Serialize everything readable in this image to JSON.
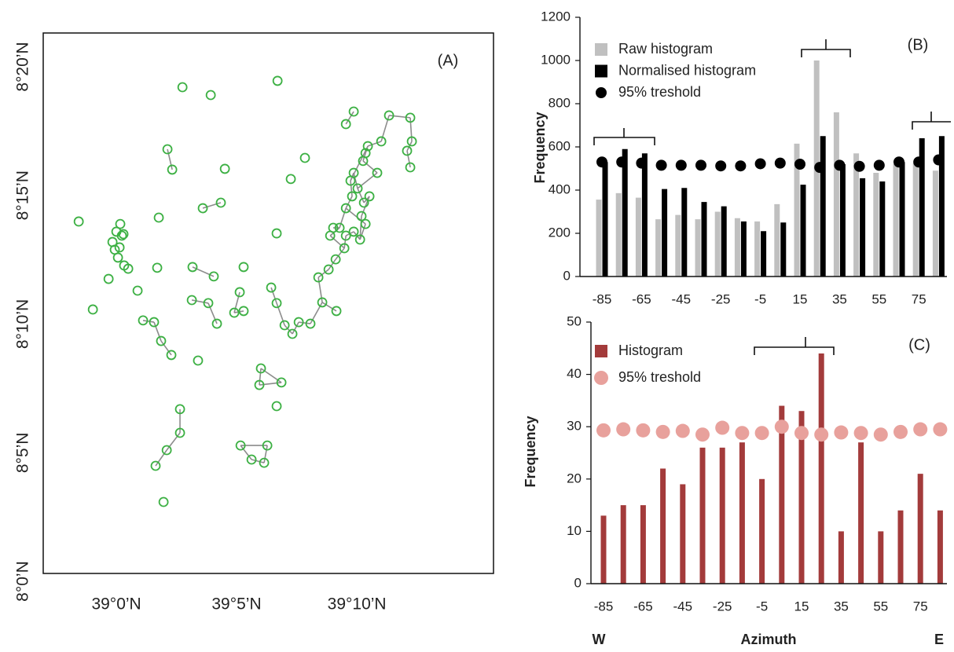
{
  "chart_data": [
    {
      "type": "scatter",
      "annotation": "(A)",
      "color": "#3cb043",
      "link_color": "#8c8c8c",
      "xlim": [
        38.9493,
        39.2614
      ],
      "ylim": [
        8.0051,
        8.3552
      ],
      "xticks": [
        {
          "value": 39.0,
          "label": "39°0’N"
        },
        {
          "value": 39.0833,
          "label": "39°5’N"
        },
        {
          "value": 39.1667,
          "label": "39°10’N"
        }
      ],
      "yticks": [
        {
          "value": 8.0,
          "label": "8°0’N"
        },
        {
          "value": 8.0833,
          "label": "8°5’N"
        },
        {
          "value": 8.1667,
          "label": "8°10’N"
        },
        {
          "value": 8.25,
          "label": "8°15’N"
        },
        {
          "value": 8.3333,
          "label": "8°20’N"
        }
      ],
      "x": [
        38.9739,
        38.9837,
        38.9946,
        38.9973,
        38.9989,
        39.0011,
        39.0,
        39.0027,
        39.0038,
        39.0049,
        39.0022,
        39.0054,
        39.0082,
        39.0147,
        39.0185,
        39.0261,
        39.031,
        39.0381,
        39.0283,
        39.0294,
        39.0354,
        39.0387,
        39.0458,
        39.0654,
        39.0752,
        39.0599,
        39.0724,
        39.0528,
        39.0675,
        39.0523,
        39.0637,
        39.0697,
        39.0817,
        39.0855,
        39.0882,
        39.0882,
        39.0566,
        39.1117,
        39.1307,
        39.1209,
        39.1111,
        39.0441,
        39.0441,
        39.0349,
        39.0272,
        39.0327,
        39.0861,
        39.0937,
        39.1024,
        39.1046,
        39.1002,
        39.0991,
        39.1144,
        39.1111,
        39.1073,
        39.1111,
        39.1166,
        39.122,
        39.1264,
        39.1345,
        39.1427,
        39.1525,
        39.14,
        39.1471,
        39.152,
        39.158,
        39.1482,
        39.1547,
        39.1591,
        39.1634,
        39.1623,
        39.1645,
        39.1672,
        39.1716,
        39.1754,
        39.1699,
        39.1689,
        39.1727,
        39.1591,
        39.1645,
        39.1727,
        39.171,
        39.1808,
        39.1743,
        39.1836,
        39.189,
        39.2037,
        39.2015,
        39.2037,
        39.2048,
        39.1591,
        39.1645,
        39.1503
      ],
      "y": [
        8.2331,
        8.1761,
        8.1959,
        8.2198,
        8.2148,
        8.2097,
        8.2265,
        8.2315,
        8.2239,
        8.2249,
        8.2163,
        8.2046,
        8.2025,
        8.1883,
        8.169,
        8.1679,
        8.1557,
        8.1466,
        8.2031,
        8.2356,
        8.2799,
        8.2667,
        8.3201,
        8.315,
        8.2672,
        8.2417,
        8.2453,
        8.2036,
        8.1975,
        8.1822,
        8.1802,
        8.1669,
        8.174,
        8.1873,
        8.1751,
        8.2036,
        8.143,
        8.3242,
        8.2743,
        8.2606,
        8.2254,
        8.1115,
        8.0962,
        8.085,
        8.0748,
        8.0514,
        8.088,
        8.0789,
        8.0768,
        8.088,
        8.1379,
        8.1272,
        8.1288,
        8.1135,
        8.1903,
        8.1802,
        8.1659,
        8.1603,
        8.1679,
        8.1669,
        8.1807,
        8.1751,
        8.1969,
        8.202,
        8.2086,
        8.2158,
        8.2239,
        8.229,
        8.2417,
        8.2494,
        8.2595,
        8.2646,
        8.2545,
        8.2453,
        8.2494,
        8.2366,
        8.2214,
        8.2315,
        8.2962,
        8.3043,
        8.2774,
        8.2723,
        8.2646,
        8.2819,
        8.285,
        8.3018,
        8.3003,
        8.2789,
        8.2682,
        8.285,
        8.2239,
        8.2265,
        8.229
      ],
      "links": [
        [
          20,
          21
        ],
        [
          25,
          26
        ],
        [
          27,
          28
        ],
        [
          29,
          30
        ],
        [
          30,
          31
        ],
        [
          32,
          33
        ],
        [
          32,
          34
        ],
        [
          41,
          42
        ],
        [
          42,
          43
        ],
        [
          43,
          44
        ],
        [
          14,
          15
        ],
        [
          15,
          16
        ],
        [
          16,
          17
        ],
        [
          50,
          51
        ],
        [
          51,
          52
        ],
        [
          50,
          52
        ],
        [
          46,
          47
        ],
        [
          47,
          48
        ],
        [
          48,
          49
        ],
        [
          46,
          49
        ],
        [
          54,
          55
        ],
        [
          55,
          56
        ],
        [
          56,
          57
        ],
        [
          57,
          58
        ],
        [
          58,
          59
        ],
        [
          59,
          60
        ],
        [
          60,
          61
        ],
        [
          60,
          62
        ],
        [
          62,
          63
        ],
        [
          63,
          64
        ],
        [
          64,
          65
        ],
        [
          65,
          66
        ],
        [
          66,
          67
        ],
        [
          67,
          68
        ],
        [
          68,
          69
        ],
        [
          69,
          70
        ],
        [
          70,
          71
        ],
        [
          71,
          72
        ],
        [
          72,
          73
        ],
        [
          73,
          74
        ],
        [
          74,
          75
        ],
        [
          75,
          76
        ],
        [
          76,
          77
        ],
        [
          77,
          68
        ],
        [
          78,
          79
        ],
        [
          80,
          81
        ],
        [
          81,
          82
        ],
        [
          80,
          83
        ],
        [
          83,
          84
        ],
        [
          84,
          85
        ],
        [
          85,
          86
        ],
        [
          86,
          89
        ],
        [
          89,
          87
        ],
        [
          87,
          88
        ],
        [
          90,
          91
        ],
        [
          91,
          76
        ],
        [
          92,
          67
        ],
        [
          90,
          65
        ],
        [
          83,
          70
        ],
        [
          82,
          72
        ]
      ]
    },
    {
      "type": "bar",
      "annotation": "(B)",
      "ylabel": "Frequency",
      "categories": [
        -85,
        null,
        -65,
        null,
        -45,
        null,
        -25,
        null,
        -5,
        null,
        15,
        null,
        35,
        null,
        55,
        null,
        75,
        null
      ],
      "ylim": [
        0,
        1200
      ],
      "yticks": [
        0,
        200,
        400,
        600,
        800,
        1000,
        1200
      ],
      "series": [
        {
          "name": "Raw histogram",
          "color": "#c0c0c0",
          "marker": "bar",
          "values": [
            356,
            386,
            365,
            265,
            285,
            265,
            300,
            270,
            255,
            335,
            615,
            1000,
            760,
            570,
            480,
            520,
            525,
            490
          ]
        },
        {
          "name": "Normalised histogram",
          "color": "#000000",
          "marker": "bar",
          "values": [
            530,
            590,
            570,
            405,
            410,
            345,
            325,
            255,
            210,
            250,
            425,
            650,
            520,
            455,
            440,
            530,
            640,
            650
          ]
        },
        {
          "name": "95% treshold",
          "color": "#000000",
          "marker": "circle",
          "values": [
            530,
            530,
            525,
            515,
            515,
            515,
            512,
            512,
            522,
            525,
            520,
            505,
            515,
            510,
            515,
            530,
            530,
            540
          ]
        }
      ]
    },
    {
      "type": "bar",
      "annotation": "(C)",
      "ylabel": "Frequency",
      "xlabel": "Azimuth",
      "x_end_labels": [
        "W",
        "E"
      ],
      "categories": [
        -85,
        null,
        -65,
        null,
        -45,
        null,
        -25,
        null,
        -5,
        null,
        15,
        null,
        35,
        null,
        55,
        null,
        75,
        null
      ],
      "ylim": [
        0,
        50
      ],
      "yticks": [
        0,
        10,
        20,
        30,
        40,
        50
      ],
      "series": [
        {
          "name": "Histogram",
          "color": "#a33b3b",
          "marker": "bar",
          "values": [
            13,
            15,
            15,
            22,
            19,
            26,
            26,
            27,
            20,
            34,
            33,
            44,
            10,
            27,
            10,
            14,
            21,
            14
          ]
        },
        {
          "name": "95% treshold",
          "color": "#e8a19c",
          "marker": "circle",
          "values": [
            29.3,
            29.5,
            29.3,
            29,
            29.2,
            28.5,
            29.8,
            28.8,
            28.8,
            30,
            28.8,
            28.5,
            28.9,
            28.8,
            28.5,
            29,
            29.5,
            29.5
          ]
        }
      ]
    }
  ]
}
